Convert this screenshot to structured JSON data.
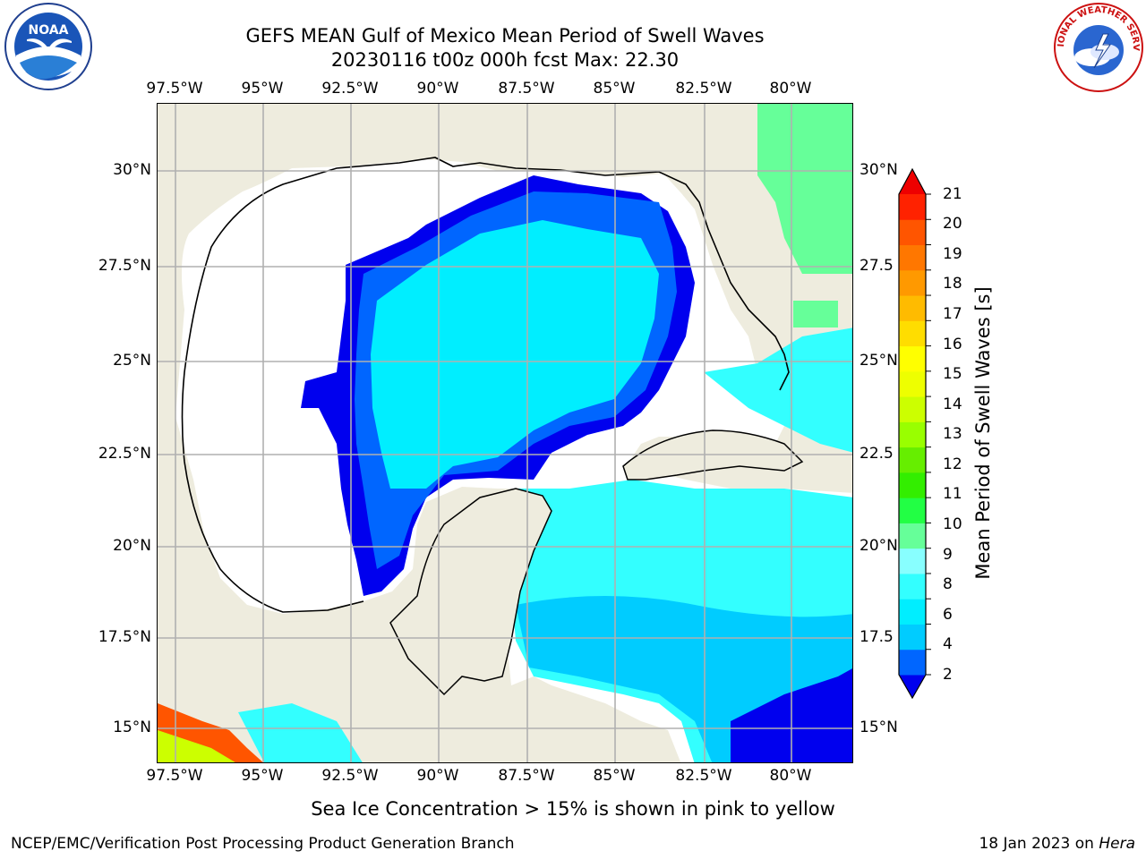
{
  "title": {
    "line1": "GEFS MEAN Gulf of Mexico Mean Period of Swell Waves",
    "line2": "20230116 t00z 000h fcst   Max: 22.30"
  },
  "map": {
    "lon_labels": [
      "97.5°W",
      "95°W",
      "92.5°W",
      "90°W",
      "87.5°W",
      "85°W",
      "82.5°W",
      "80°W"
    ],
    "lat_labels_left": [
      "30°N",
      "27.5°N",
      "25°N",
      "22.5°N",
      "20°N",
      "17.5°N",
      "15°N"
    ],
    "lat_labels_right": [
      "30°N",
      "27.5",
      "25°N",
      "22.5",
      "20°N",
      "17.5",
      "15°N"
    ],
    "colors": {
      "land": "#eeecde",
      "ocean_missing": "#ffffff",
      "gridline": "#b0b0b0",
      "coastline": "#000000"
    }
  },
  "colorbar": {
    "label": "Mean Period of Swell Waves [s]",
    "ticks": [
      "21",
      "20",
      "19",
      "18",
      "17",
      "16",
      "15",
      "14",
      "13",
      "12",
      "11",
      "10",
      "9",
      "8",
      "6",
      "4",
      "2"
    ],
    "colors": [
      "#0000ee",
      "#0066ff",
      "#00ccff",
      "#00eeff",
      "#33ffff",
      "#88ffff",
      "#66ff99",
      "#22ff44",
      "#33ee00",
      "#66ee00",
      "#99ff00",
      "#ccff00",
      "#eeff00",
      "#ffff00",
      "#ffdd00",
      "#ffbb00",
      "#ff9900",
      "#ff7700",
      "#ff5500",
      "#ff2200",
      "#ee0000"
    ]
  },
  "note": "Sea Ice Concentration > 15% is shown in pink to yellow",
  "footer": {
    "left": "NCEP/EMC/Verification Post Processing Product Generation Branch",
    "right_date": "18 Jan 2023 on ",
    "right_host": "Hera"
  },
  "logos": {
    "noaa_text": "NOAA",
    "nws_text": "NATIONAL WEATHER SERVICE"
  }
}
